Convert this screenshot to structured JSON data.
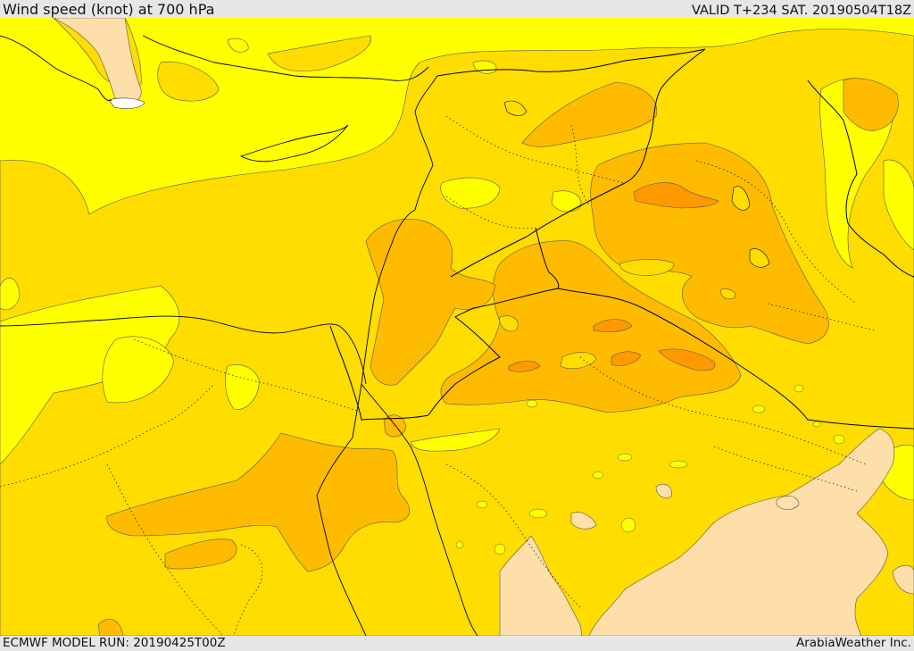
{
  "header": {
    "title": "Wind speed (knot) at 700 hPa",
    "valid": "VALID T+234 SAT. 20190504T18Z"
  },
  "footer": {
    "model_run": "ECMWF MODEL RUN: 20190425T00Z",
    "credit": "ArabiaWeather Inc."
  },
  "colors": {
    "lowest": "#fedfaa",
    "low": "#ffff00",
    "mid": "#ffdd00",
    "high": "#ffbb00",
    "higher": "#ff9900",
    "sea_ice_white": "#ffffff",
    "border": "#000000",
    "contour": "#333333"
  }
}
